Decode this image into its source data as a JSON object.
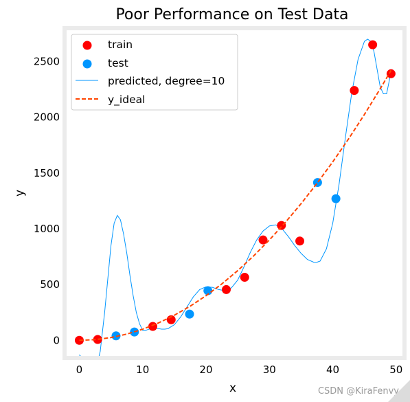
{
  "chart_data": {
    "type": "scatter",
    "title": "Poor Performance on Test Data",
    "xlabel": "x",
    "ylabel": "y",
    "xlim": [
      -2,
      51
    ],
    "ylim": [
      -140,
      2780
    ],
    "xticks": [
      0,
      10,
      20,
      30,
      40,
      50
    ],
    "yticks": [
      0,
      500,
      1000,
      1500,
      2000,
      2500
    ],
    "grid": false,
    "legend_position": "top-left",
    "series": [
      {
        "name": "train",
        "kind": "scatter",
        "color": "#ff0000",
        "x": [
          0,
          2.9,
          11.6,
          14.5,
          23.2,
          26.1,
          29.0,
          31.9,
          34.8,
          43.4,
          46.3,
          49.2
        ],
        "y": [
          0,
          8,
          125,
          185,
          455,
          565,
          900,
          1030,
          890,
          2240,
          2650,
          2390
        ]
      },
      {
        "name": "test",
        "kind": "scatter",
        "color": "#0096ff",
        "x": [
          5.8,
          8.7,
          17.4,
          20.3,
          37.6,
          40.5
        ],
        "y": [
          40,
          75,
          235,
          445,
          1415,
          1270
        ]
      },
      {
        "name": "predicted, degree=10",
        "kind": "line",
        "color": "#0096ff",
        "x": [
          0,
          0.5,
          1,
          1.5,
          2,
          2.5,
          3,
          3.3,
          3.6,
          4,
          4.5,
          5,
          5.5,
          6,
          6.5,
          7,
          7.5,
          8,
          8.5,
          9,
          9.5,
          10,
          10.5,
          11,
          11.5,
          12,
          12.5,
          13,
          13.5,
          14,
          15,
          16,
          17,
          18,
          19,
          20,
          21,
          22,
          23,
          24,
          25,
          26,
          27,
          28,
          29,
          30,
          31,
          32,
          33,
          34,
          35,
          36,
          37,
          37.5,
          38,
          39,
          40,
          41,
          42,
          43,
          44,
          45,
          45.5,
          46,
          46.5,
          47,
          47.5,
          48,
          48.5,
          49,
          49.2
        ],
        "y": [
          -130,
          -160,
          -170,
          -175,
          -175,
          -175,
          -170,
          -100,
          50,
          250,
          550,
          850,
          1050,
          1120,
          1080,
          950,
          780,
          580,
          400,
          250,
          150,
          90,
          90,
          100,
          110,
          110,
          105,
          100,
          100,
          105,
          140,
          210,
          300,
          390,
          455,
          480,
          475,
          455,
          445,
          470,
          540,
          660,
          790,
          900,
          980,
          1025,
          1035,
          1000,
          930,
          850,
          780,
          725,
          700,
          700,
          710,
          820,
          1050,
          1400,
          1820,
          2220,
          2520,
          2680,
          2700,
          2680,
          2590,
          2430,
          2270,
          2210,
          2210,
          2350,
          2400
        ]
      },
      {
        "name": "y_ideal",
        "kind": "line",
        "color": "#ff4500",
        "x": [
          0,
          2.5,
          5,
          7.5,
          10,
          12.5,
          15,
          17.5,
          20,
          22.5,
          25,
          27.5,
          30,
          32.5,
          35,
          37.5,
          40,
          42.5,
          45,
          47.5,
          49.2
        ],
        "y": [
          0,
          6,
          25,
          56,
          100,
          156,
          225,
          306,
          400,
          506,
          625,
          756,
          900,
          1056,
          1225,
          1406,
          1600,
          1806,
          2025,
          2256,
          2420
        ]
      }
    ]
  },
  "watermark": "CSDN @KiraFenvy"
}
